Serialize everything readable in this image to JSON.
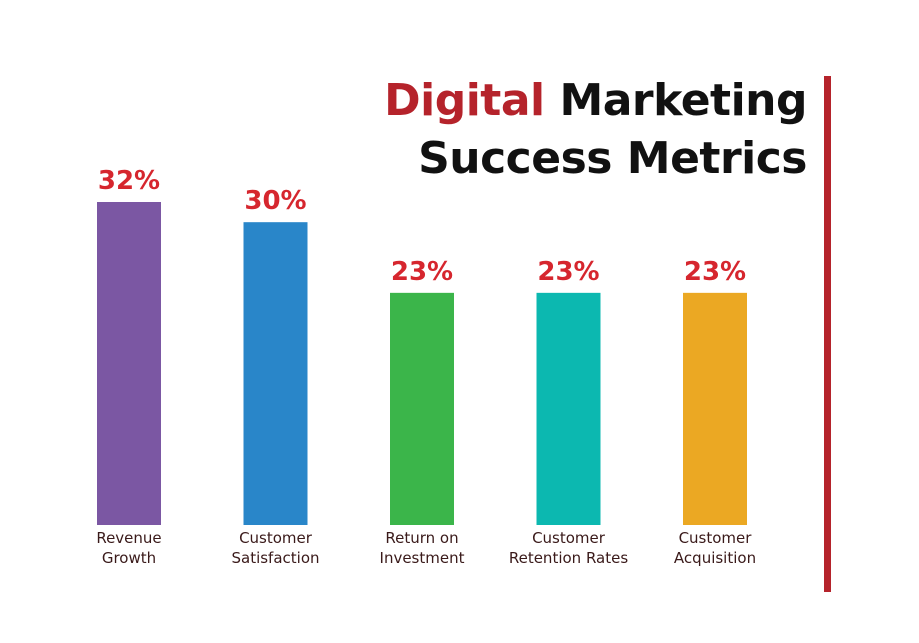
{
  "title": {
    "accent": "Digital",
    "line1_rest": "Marketing",
    "line2": "Success Metrics"
  },
  "colors": {
    "accent": "#b5232b",
    "value_label": "#d6262e",
    "category_label": "#3a1a1a"
  },
  "chart_data": {
    "type": "bar",
    "title": "Digital Marketing Success Metrics",
    "categories": [
      [
        "Revenue",
        "Growth"
      ],
      [
        "Customer",
        "Satisfaction"
      ],
      [
        "Return on",
        "Investment"
      ],
      [
        "Customer",
        "Retention Rates"
      ],
      [
        "Customer",
        "Acquisition"
      ]
    ],
    "values": [
      32,
      30,
      23,
      23,
      23
    ],
    "value_labels": [
      "32%",
      "30%",
      "23%",
      "23%",
      "23%"
    ],
    "bar_colors": [
      "#7b57a3",
      "#2986c9",
      "#3bb54a",
      "#0cb8b0",
      "#eba823"
    ],
    "ylim": [
      0,
      32
    ],
    "grid": false,
    "legend": "none"
  }
}
